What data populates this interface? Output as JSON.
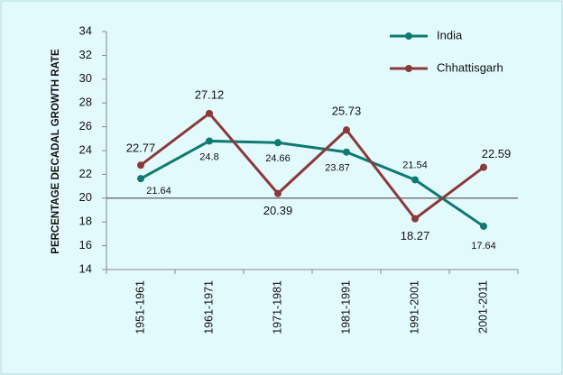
{
  "chart_data": {
    "type": "line",
    "y_label": "PERCENTAGE DECADAL GROWTH RATE",
    "categories": [
      "1951-1961",
      "1961-1971",
      "1971-1981",
      "1981-1991",
      "1991-2001",
      "2001-2011"
    ],
    "series": [
      {
        "name": "India",
        "color": "#0f7a72",
        "values": [
          21.64,
          24.8,
          24.66,
          23.87,
          21.54,
          17.64
        ]
      },
      {
        "name": "Chhattisgarh",
        "color": "#8b3a3a",
        "values": [
          22.77,
          27.12,
          20.39,
          25.73,
          18.27,
          22.59
        ]
      }
    ],
    "ylim": [
      14,
      34
    ],
    "yticks": [
      14,
      16,
      18,
      20,
      22,
      24,
      26,
      28,
      30,
      32,
      34
    ],
    "reference_line": 20,
    "grid": false,
    "legend": "top-right"
  }
}
